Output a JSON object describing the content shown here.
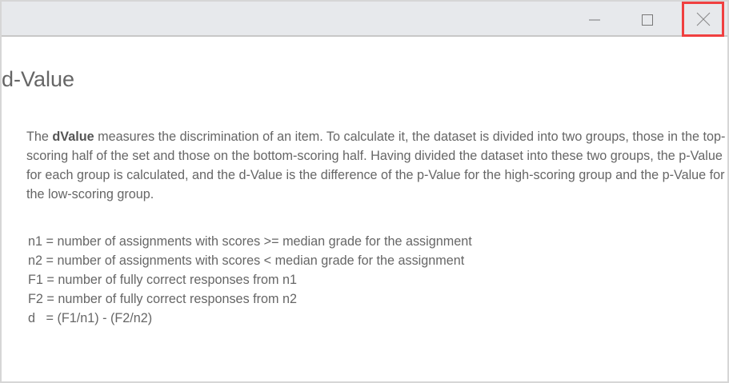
{
  "window": {
    "controls": {
      "minimize": "minimize-icon",
      "maximize": "maximize-icon",
      "close": "close-icon"
    },
    "close_highlight": "#f04040"
  },
  "page": {
    "title": "d-Value",
    "intro_before": "The ",
    "intro_bold": "dValue",
    "intro_after": " measures the discrimination of an item. To calculate it, the dataset is divided into two groups, those in the top-scoring half of the set and those on the bottom-scoring half. Having divided the dataset into these two groups, the p-Value for each group is calculated, and the d-Value is the difference of the p-Value for the high-scoring group and the p-Value for the low-scoring group.",
    "definitions": [
      "n1 = number of assignments with scores >= median grade for the assignment",
      "n2 = number of assignments with scores < median grade for the assignment",
      "F1 = number of fully correct responses from n1",
      "F2 = number of fully correct responses from n2",
      "d   = (F1/n1) - (F2/n2)"
    ]
  }
}
